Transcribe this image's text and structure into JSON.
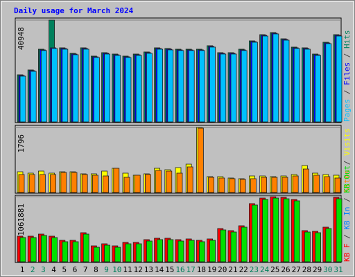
{
  "title": "Daily usage for March 2024",
  "legend_separator": " / ",
  "chart_data": [
    {
      "type": "bar",
      "draw_order": "reverse",
      "ylim": [
        0,
        40948
      ],
      "yticks": [
        40948
      ],
      "series": [
        {
          "name": "Pages",
          "color": "#00c0ff",
          "values": [
            18390,
            20340,
            28690,
            29530,
            29250,
            27020,
            29250,
            25910,
            27300,
            26740,
            25910,
            26740,
            27580,
            29250,
            28970,
            28690,
            28690,
            28690,
            30090,
            27300,
            27300,
            28690,
            32040,
            34540,
            35380,
            32870,
            29530,
            29250,
            26740,
            31480,
            34540
          ]
        },
        {
          "name": "Files",
          "color": "#0000ff",
          "values": [
            18670,
            20620,
            28970,
            29810,
            29530,
            27300,
            29530,
            26190,
            27580,
            27020,
            26190,
            27020,
            27860,
            29530,
            29250,
            28970,
            28970,
            28970,
            30370,
            27580,
            27580,
            28970,
            32320,
            34820,
            35660,
            33150,
            29810,
            29530,
            27020,
            31760,
            34820
          ]
        },
        {
          "name": "Hits",
          "color": "#00805c",
          "values": [
            18950,
            20900,
            29250,
            40948,
            29810,
            27580,
            29810,
            26470,
            27860,
            27300,
            26470,
            27300,
            28140,
            29810,
            29530,
            29250,
            29250,
            29250,
            30650,
            27860,
            27860,
            29250,
            32600,
            35100,
            35940,
            33430,
            30090,
            29810,
            27300,
            32040,
            35100
          ]
        }
      ]
    },
    {
      "type": "bar",
      "draw_order": "reverse",
      "ylim": [
        0,
        1796
      ],
      "yticks": [
        1796
      ],
      "series": [
        {
          "name": "Sites",
          "color": "#ff8000",
          "values": [
            497,
            497,
            497,
            497,
            554,
            554,
            497,
            478,
            458,
            669,
            420,
            478,
            497,
            611,
            592,
            535,
            707,
            1776,
            420,
            401,
            382,
            363,
            382,
            420,
            420,
            420,
            458,
            649,
            478,
            439,
            401
          ]
        },
        {
          "name": "Visits",
          "color": "#ffff00",
          "values": [
            573,
            535,
            592,
            535,
            573,
            573,
            516,
            516,
            592,
            669,
            535,
            478,
            516,
            669,
            630,
            688,
            783,
            1796,
            439,
            439,
            401,
            382,
            458,
            458,
            439,
            458,
            497,
            745,
            535,
            497,
            478
          ]
        }
      ]
    },
    {
      "type": "bar",
      "draw_order": "forward",
      "ylim": [
        0,
        1061881
      ],
      "yticks": [
        1061881
      ],
      "categories": [
        "1",
        "2",
        "3",
        "4",
        "5",
        "6",
        "7",
        "8",
        "9",
        "10",
        "11",
        "12",
        "13",
        "14",
        "15",
        "16",
        "17",
        "18",
        "19",
        "20",
        "21",
        "22",
        "23",
        "24",
        "25",
        "26",
        "27",
        "28",
        "29",
        "30",
        "31"
      ],
      "category_colors": [
        "#000000",
        "#00805c",
        "#00805c",
        "#000000",
        "#000000",
        "#000000",
        "#000000",
        "#000000",
        "#00805c",
        "#00805c",
        "#000000",
        "#000000",
        "#000000",
        "#000000",
        "#000000",
        "#00805c",
        "#00805c",
        "#000000",
        "#000000",
        "#000000",
        "#000000",
        "#000000",
        "#00805c",
        "#00805c",
        "#000000",
        "#000000",
        "#000000",
        "#000000",
        "#000000",
        "#00805c",
        "#00805c"
      ],
      "series": [
        {
          "name": "KB F",
          "color": "#ff0000",
          "values": [
            418000,
            418000,
            451900,
            418000,
            350200,
            350200,
            474500,
            259800,
            293700,
            259800,
            316300,
            316300,
            361500,
            384100,
            384100,
            361500,
            372800,
            350200,
            372800,
            542300,
            508400,
            587500,
            949000,
            1039300,
            1061881,
            1050600,
            1016700,
            508400,
            497100,
            564900,
            1050600
          ]
        },
        {
          "name": "KB In",
          "color": "#0080ff",
          "values": [
            0,
            0,
            0,
            0,
            0,
            0,
            0,
            0,
            0,
            0,
            0,
            0,
            0,
            0,
            0,
            0,
            0,
            0,
            0,
            0,
            0,
            0,
            0,
            0,
            0,
            0,
            0,
            0,
            0,
            0,
            0
          ]
        },
        {
          "name": "KB Out",
          "color": "#00e000",
          "values": [
            395400,
            395400,
            429300,
            395400,
            327600,
            327600,
            451900,
            237200,
            271100,
            237200,
            293700,
            293700,
            338900,
            361500,
            361500,
            338900,
            350200,
            327600,
            350200,
            519700,
            485800,
            564900,
            926400,
            1016700,
            1039300,
            1028000,
            994100,
            485800,
            474500,
            542300,
            1028000
          ]
        }
      ]
    }
  ]
}
